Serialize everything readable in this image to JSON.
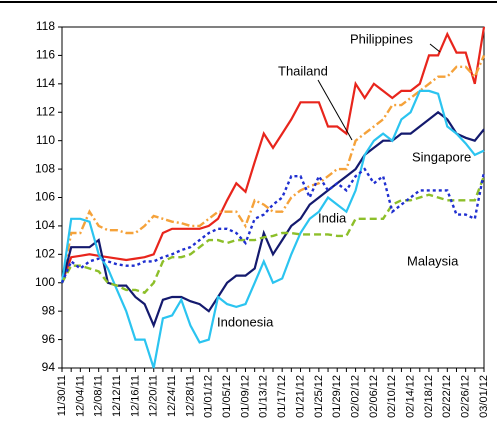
{
  "chart_data": {
    "type": "line",
    "categories": [
      "11/30/11",
      null,
      "12/04/11",
      null,
      "12/08/11",
      null,
      "12/12/11",
      null,
      "12/16/11",
      null,
      "12/20/11",
      null,
      "12/24/11",
      null,
      "12/28/11",
      null,
      "01/01/12",
      null,
      "01/05/12",
      null,
      "01/09/12",
      null,
      "01/13/12",
      null,
      "01/17/12",
      null,
      "01/21/12",
      null,
      "01/25/12",
      null,
      "01/29/12",
      null,
      "02/02/12",
      null,
      "02/06/12",
      null,
      "02/10/12",
      null,
      "02/14/12",
      null,
      "02/18/12",
      null,
      "02/22/12",
      null,
      "02/26/12",
      null,
      "03/01/12"
    ],
    "ylim": [
      94,
      118
    ],
    "yticks": [
      94,
      96,
      98,
      100,
      102,
      104,
      106,
      108,
      110,
      112,
      114,
      116,
      118
    ],
    "series": [
      {
        "name": "Philippines",
        "color": "#e8251c",
        "style": "solid",
        "values": [
          100,
          101.8,
          101.9,
          102,
          101.9,
          101.8,
          101.7,
          101.6,
          101.7,
          101.8,
          102,
          103.5,
          103.8,
          103.8,
          103.8,
          103.8,
          104,
          104.5,
          105.8,
          107,
          106.4,
          108.5,
          110.5,
          109.5,
          110.5,
          111.5,
          112.7,
          112.7,
          112.7,
          111,
          111,
          110.5,
          114,
          113,
          114,
          113.5,
          113,
          113.5,
          113.5,
          114,
          116,
          116,
          117.5,
          116.2,
          116.2,
          114,
          118
        ]
      },
      {
        "name": "Thailand",
        "color": "#f5a23a",
        "style": "dashdot",
        "values": [
          100,
          103.5,
          103.5,
          105,
          104,
          103.7,
          103.7,
          103.5,
          103.5,
          104,
          104.7,
          104.5,
          104.3,
          104.2,
          104,
          104,
          104.5,
          105,
          105,
          105,
          104,
          105.8,
          105.5,
          105,
          105,
          106,
          106.5,
          106.8,
          107,
          107.5,
          108,
          108,
          110,
          110.5,
          111,
          111.5,
          112.5,
          112.5,
          113,
          113.5,
          114,
          114.5,
          114.5,
          115.2,
          115.2,
          114.5,
          116
        ]
      },
      {
        "name": "Singapore",
        "color": "#141a6e",
        "style": "solid",
        "values": [
          100,
          102.5,
          102.5,
          102.5,
          103,
          100,
          99.8,
          99.8,
          99,
          98.5,
          97,
          98.8,
          99,
          99,
          98.7,
          98.5,
          98,
          99,
          100,
          100.5,
          100.5,
          101,
          103.5,
          102,
          103,
          104,
          104.5,
          105.5,
          106,
          106.5,
          107,
          107.5,
          108,
          109,
          109.5,
          110,
          110,
          110.5,
          110.5,
          111,
          111.5,
          112,
          111.5,
          110.5,
          110.2,
          110,
          110.8
        ]
      },
      {
        "name": "India",
        "color": "#2bc4f0",
        "style": "solid",
        "values": [
          100,
          104.5,
          104.5,
          104.3,
          102,
          101,
          99.5,
          98,
          96,
          96,
          94,
          97.5,
          97.7,
          98.8,
          97,
          95.8,
          96,
          99,
          98.5,
          98.3,
          98.5,
          100,
          101.5,
          100,
          100.3,
          102,
          103.5,
          104.5,
          105,
          106,
          105.5,
          105,
          106.5,
          109,
          110,
          110.5,
          110,
          111.5,
          112,
          113.5,
          113.5,
          113.3,
          111,
          110.5,
          109.8,
          109,
          109.3
        ]
      },
      {
        "name": "Malaysia",
        "color": "#8dbf2a",
        "style": "dashed",
        "values": [
          100,
          101.2,
          101.2,
          101,
          100.8,
          100,
          99.8,
          99.5,
          99.5,
          99.3,
          100,
          101.5,
          101.8,
          101.8,
          102,
          102.5,
          103,
          103,
          102.8,
          103,
          103,
          103,
          103.2,
          103.3,
          103.5,
          103.5,
          103.4,
          103.4,
          103.4,
          103.4,
          103.3,
          103.3,
          104.5,
          104.5,
          104.5,
          104.5,
          105.5,
          105.8,
          105.8,
          106,
          106.2,
          106,
          105.8,
          105.8,
          105.8,
          105.8,
          107.5
        ]
      },
      {
        "name": "Indonesia",
        "color": "#1f2fd0",
        "style": "dotted",
        "values": [
          100,
          101.5,
          101,
          101.5,
          101.7,
          101.5,
          101.3,
          101.2,
          101.2,
          101.5,
          101.5,
          101.8,
          102,
          102.3,
          102.5,
          103,
          103.5,
          103.8,
          103.8,
          103.5,
          102.8,
          104.5,
          104.8,
          105.5,
          106,
          107.5,
          107.5,
          106,
          107.5,
          106.5,
          107,
          106.5,
          107.5,
          108,
          107,
          107.5,
          105,
          105.5,
          106,
          106.5,
          106.5,
          106.5,
          106.5,
          104.8,
          104.8,
          104.5,
          107.8
        ]
      }
    ]
  }
}
